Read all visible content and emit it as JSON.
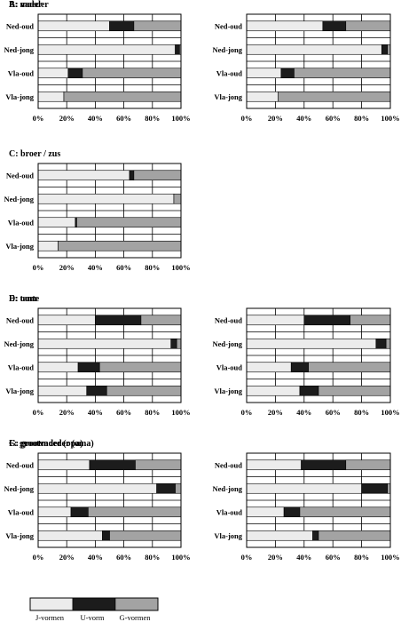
{
  "colors": {
    "J": "#ececec",
    "U": "#1c1c1c",
    "G": "#a3a3a3",
    "frame": "#000000"
  },
  "chart_data": [
    {
      "type": "bar",
      "orientation": "horizontal",
      "stacked": true,
      "title": "A: vader",
      "categories": [
        "Ned-oud",
        "Ned-jong",
        "Vla-oud",
        "Vla-jong"
      ],
      "xlim": [
        0,
        100
      ],
      "xticks": [
        "0%",
        "20%",
        "40%",
        "60%",
        "80%",
        "100%"
      ],
      "grid": true,
      "series": [
        {
          "name": "J-vormen",
          "values": [
            50,
            96,
            21,
            18
          ]
        },
        {
          "name": "U-vorm",
          "values": [
            17,
            3,
            10,
            0
          ]
        },
        {
          "name": "G-vormen",
          "values": [
            33,
            1,
            69,
            82
          ]
        }
      ]
    },
    {
      "type": "bar",
      "orientation": "horizontal",
      "stacked": true,
      "title": "B: moeder",
      "categories": [
        "Ned-oud",
        "Ned-jong",
        "Vla-oud",
        "Vla-jong"
      ],
      "xlim": [
        0,
        100
      ],
      "xticks": [
        "0%",
        "20%",
        "40%",
        "60%",
        "80%",
        "100%"
      ],
      "grid": true,
      "series": [
        {
          "name": "J-vormen",
          "values": [
            53,
            94,
            24,
            22
          ]
        },
        {
          "name": "U-vorm",
          "values": [
            16,
            4,
            9,
            0
          ]
        },
        {
          "name": "G-vormen",
          "values": [
            31,
            2,
            67,
            78
          ]
        }
      ]
    },
    {
      "type": "bar",
      "orientation": "horizontal",
      "stacked": true,
      "title": "C: broer / zus",
      "categories": [
        "Ned-oud",
        "Ned-jong",
        "Vla-oud",
        "Vla-jong"
      ],
      "xlim": [
        0,
        100
      ],
      "xticks": [
        "0%",
        "20%",
        "40%",
        "60%",
        "80%",
        "100%"
      ],
      "grid": true,
      "series": [
        {
          "name": "J-vormen",
          "values": [
            64,
            95,
            26,
            14
          ]
        },
        {
          "name": "U-vorm",
          "values": [
            3,
            0,
            1,
            0
          ]
        },
        {
          "name": "G-vormen",
          "values": [
            33,
            5,
            73,
            86
          ]
        }
      ]
    },
    {
      "type": "bar",
      "orientation": "horizontal",
      "stacked": true,
      "title": "D: oom",
      "categories": [
        "Ned-oud",
        "Ned-jong",
        "Vla-oud",
        "Vla-jong"
      ],
      "xlim": [
        0,
        100
      ],
      "xticks": [
        "0%",
        "20%",
        "40%",
        "60%",
        "80%",
        "100%"
      ],
      "grid": true,
      "series": [
        {
          "name": "J-vormen",
          "values": [
            40,
            93,
            28,
            34
          ]
        },
        {
          "name": "U-vorm",
          "values": [
            32,
            4,
            15,
            14
          ]
        },
        {
          "name": "G-vormen",
          "values": [
            28,
            3,
            57,
            52
          ]
        }
      ]
    },
    {
      "type": "bar",
      "orientation": "horizontal",
      "stacked": true,
      "title": "E: tante",
      "categories": [
        "Ned-oud",
        "Ned-jong",
        "Vla-oud",
        "Vla-jong"
      ],
      "xlim": [
        0,
        100
      ],
      "xticks": [
        "0%",
        "20%",
        "40%",
        "60%",
        "80%",
        "100%"
      ],
      "grid": true,
      "series": [
        {
          "name": "J-vormen",
          "values": [
            40,
            90,
            31,
            37
          ]
        },
        {
          "name": "U-vorm",
          "values": [
            32,
            7,
            12,
            13
          ]
        },
        {
          "name": "G-vormen",
          "values": [
            28,
            3,
            57,
            50
          ]
        }
      ]
    },
    {
      "type": "bar",
      "orientation": "horizontal",
      "stacked": true,
      "title": "F: grootvader (opa)",
      "categories": [
        "Ned-oud",
        "Ned-jong",
        "Vla-oud",
        "Vla-jong"
      ],
      "xlim": [
        0,
        100
      ],
      "xticks": [
        "0%",
        "20%",
        "40%",
        "60%",
        "80%",
        "100%"
      ],
      "grid": true,
      "series": [
        {
          "name": "J-vormen",
          "values": [
            36,
            83,
            23,
            45
          ]
        },
        {
          "name": "U-vorm",
          "values": [
            32,
            13,
            12,
            5
          ]
        },
        {
          "name": "G-vormen",
          "values": [
            32,
            4,
            65,
            50
          ]
        }
      ]
    },
    {
      "type": "bar",
      "orientation": "horizontal",
      "stacked": true,
      "title": "G: grootmoeder (oma)",
      "categories": [
        "Ned-oud",
        "Ned-jong",
        "Vla-oud",
        "Vla-jong"
      ],
      "xlim": [
        0,
        100
      ],
      "xticks": [
        "0%",
        "20%",
        "40%",
        "60%",
        "80%",
        "100%"
      ],
      "grid": true,
      "series": [
        {
          "name": "J-vormen",
          "values": [
            38,
            80,
            26,
            46
          ]
        },
        {
          "name": "U-vorm",
          "values": [
            31,
            18,
            11,
            4
          ]
        },
        {
          "name": "G-vormen",
          "values": [
            31,
            2,
            63,
            50
          ]
        }
      ]
    }
  ],
  "legend": {
    "entries": [
      {
        "label": "J-vormen",
        "color": "#ececec"
      },
      {
        "label": "U-vorm",
        "color": "#1c1c1c"
      },
      {
        "label": "G-vormen",
        "color": "#a3a3a3"
      }
    ]
  }
}
